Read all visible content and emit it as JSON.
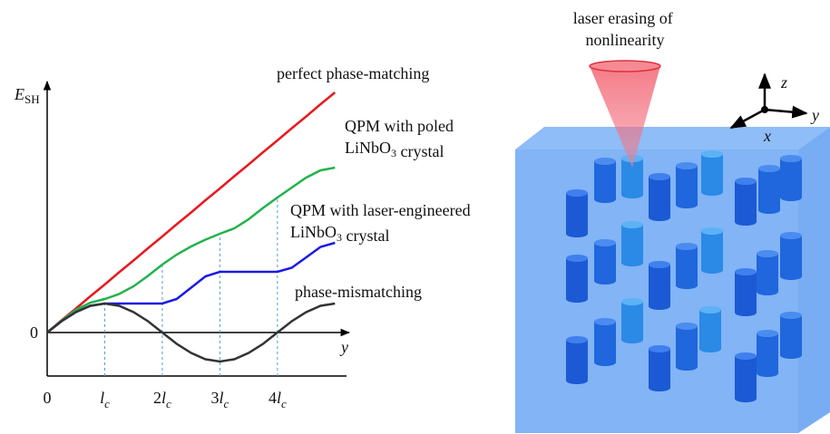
{
  "chart_data": {
    "type": "line",
    "ylabel": "ESH",
    "xlabel": "y",
    "x": [
      0,
      0.25,
      0.5,
      0.75,
      1,
      1.25,
      1.5,
      1.75,
      2,
      2.25,
      2.5,
      2.75,
      3,
      3.25,
      3.5,
      3.75,
      4,
      4.25,
      4.5,
      4.75,
      5
    ],
    "series": [
      {
        "name": "perfect phase-matching",
        "color": "#e8191f",
        "values": [
          0,
          0.27,
          0.53,
          0.8,
          1.06,
          1.33,
          1.59,
          1.86,
          2.12,
          2.39,
          2.65,
          2.92,
          3.18,
          3.45,
          3.71,
          3.98,
          4.24,
          4.51,
          4.77,
          5.04,
          5.3
        ]
      },
      {
        "name": "QPM with poled LiNbO3 crystal",
        "color": "#22b24c",
        "values": [
          0,
          0.26,
          0.5,
          0.66,
          0.74,
          0.85,
          1.02,
          1.25,
          1.5,
          1.72,
          1.9,
          2.05,
          2.18,
          2.3,
          2.5,
          2.75,
          2.98,
          3.2,
          3.42,
          3.58,
          3.64
        ]
      },
      {
        "name": "QPM with laser-engineered LiNbO3 crystal",
        "color": "#1a1ae6",
        "values": [
          0,
          0.25,
          0.45,
          0.59,
          0.64,
          0.64,
          0.64,
          0.64,
          0.64,
          0.74,
          0.99,
          1.24,
          1.34,
          1.34,
          1.34,
          1.34,
          1.34,
          1.43,
          1.66,
          1.89,
          1.98
        ]
      },
      {
        "name": "phase-mismatching",
        "color": "#333333",
        "values": [
          0,
          0.25,
          0.45,
          0.59,
          0.64,
          0.59,
          0.45,
          0.25,
          0,
          -0.25,
          -0.45,
          -0.59,
          -0.64,
          -0.59,
          -0.45,
          -0.25,
          0,
          0.25,
          0.45,
          0.59,
          0.64
        ]
      }
    ],
    "xlim": [
      0,
      5.2
    ],
    "ylim": [
      -0.96,
      5.54
    ],
    "xticks": [
      0,
      {
        "value": 1,
        "label": "lc"
      },
      {
        "value": 2,
        "label": "2lc"
      },
      {
        "value": 3,
        "label": "3lc"
      },
      {
        "value": 4,
        "label": "4lc"
      }
    ],
    "yticks": [
      0
    ]
  },
  "diagram": {
    "laser_label": "laser erasing of nonlinearity",
    "axis_labels": [
      "z",
      "y",
      "x"
    ]
  }
}
